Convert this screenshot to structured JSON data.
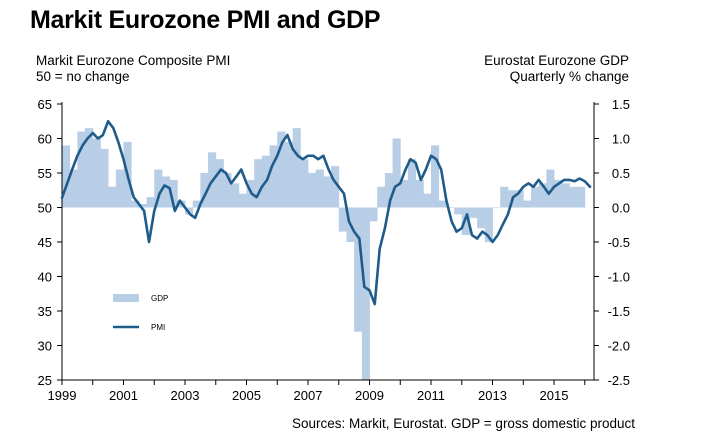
{
  "chart_data": {
    "type": "bar+line",
    "title": "Markit Eurozone PMI and GDP",
    "left_axis_label": [
      "Markit Eurozone Composite PMI",
      "50 = no change"
    ],
    "right_axis_label": [
      "Eurostat Eurozone GDP",
      "Quarterly % change"
    ],
    "source": "Sources: Markit, Eurostat. GDP = gross domestic product",
    "left_ylim": [
      25,
      65
    ],
    "left_ticks": [
      "65",
      "60",
      "55",
      "50",
      "45",
      "40",
      "35",
      "30",
      "25"
    ],
    "right_ylim": [
      -2.5,
      1.5
    ],
    "right_ticks": [
      "1.5",
      "1.0",
      "0.5",
      "0.0",
      "-0.5",
      "-1.0",
      "-1.5",
      "-2.0",
      "-2.5"
    ],
    "xlim": [
      1999,
      2016.3
    ],
    "x_ticks": [
      "1999",
      "2001",
      "2003",
      "2005",
      "2007",
      "2009",
      "2011",
      "2013",
      "2015"
    ],
    "legend": {
      "placement": "lower-left",
      "items": [
        "GDP",
        "PMI"
      ]
    },
    "colors": {
      "gdp": "#b8cde6",
      "pmi": "#1f5c8a"
    },
    "series": [
      {
        "name": "GDP",
        "axis": "right",
        "type": "bar",
        "x": [
          1999.0,
          1999.25,
          1999.5,
          1999.75,
          2000.0,
          2000.25,
          2000.5,
          2000.75,
          2001.0,
          2001.25,
          2001.5,
          2001.75,
          2002.0,
          2002.25,
          2002.5,
          2002.75,
          2003.0,
          2003.25,
          2003.5,
          2003.75,
          2004.0,
          2004.25,
          2004.5,
          2004.75,
          2005.0,
          2005.25,
          2005.5,
          2005.75,
          2006.0,
          2006.25,
          2006.5,
          2006.75,
          2007.0,
          2007.25,
          2007.5,
          2007.75,
          2008.0,
          2008.25,
          2008.5,
          2008.75,
          2009.0,
          2009.25,
          2009.5,
          2009.75,
          2010.0,
          2010.25,
          2010.5,
          2010.75,
          2011.0,
          2011.25,
          2011.5,
          2011.75,
          2012.0,
          2012.25,
          2012.5,
          2012.75,
          2013.0,
          2013.25,
          2013.5,
          2013.75,
          2014.0,
          2014.25,
          2014.5,
          2014.75,
          2015.0,
          2015.25,
          2015.5,
          2015.75
        ],
        "values": [
          0.9,
          0.55,
          1.1,
          1.15,
          1.0,
          0.85,
          0.3,
          0.55,
          0.95,
          0.1,
          0.05,
          0.15,
          0.55,
          0.45,
          0.4,
          0.1,
          -0.1,
          0.1,
          0.5,
          0.8,
          0.7,
          0.5,
          0.35,
          0.2,
          0.4,
          0.7,
          0.75,
          0.9,
          1.1,
          0.95,
          1.15,
          0.7,
          0.5,
          0.55,
          0.45,
          0.6,
          -0.35,
          -0.5,
          -1.8,
          -2.55,
          -0.2,
          0.3,
          0.5,
          1.0,
          0.4,
          0.7,
          0.4,
          0.2,
          0.9,
          0.1,
          0.0,
          -0.1,
          -0.4,
          -0.15,
          -0.3,
          -0.5,
          0.0,
          0.3,
          0.25,
          0.25,
          0.1,
          0.3,
          0.35,
          0.55,
          0.4,
          0.35,
          0.3,
          0.3
        ]
      },
      {
        "name": "PMI",
        "axis": "left",
        "type": "line",
        "x": [
          1999.0,
          1999.17,
          1999.33,
          1999.5,
          1999.67,
          1999.83,
          2000.0,
          2000.17,
          2000.33,
          2000.5,
          2000.67,
          2000.83,
          2001.0,
          2001.17,
          2001.33,
          2001.5,
          2001.67,
          2001.83,
          2002.0,
          2002.17,
          2002.33,
          2002.5,
          2002.67,
          2002.83,
          2003.0,
          2003.17,
          2003.33,
          2003.5,
          2003.67,
          2003.83,
          2004.0,
          2004.17,
          2004.33,
          2004.5,
          2004.67,
          2004.83,
          2005.0,
          2005.17,
          2005.33,
          2005.5,
          2005.67,
          2005.83,
          2006.0,
          2006.17,
          2006.33,
          2006.5,
          2006.67,
          2006.83,
          2007.0,
          2007.17,
          2007.33,
          2007.5,
          2007.67,
          2007.83,
          2008.0,
          2008.17,
          2008.33,
          2008.5,
          2008.67,
          2008.83,
          2009.0,
          2009.17,
          2009.33,
          2009.5,
          2009.67,
          2009.83,
          2010.0,
          2010.17,
          2010.33,
          2010.5,
          2010.67,
          2010.83,
          2011.0,
          2011.17,
          2011.33,
          2011.5,
          2011.67,
          2011.83,
          2012.0,
          2012.17,
          2012.33,
          2012.5,
          2012.67,
          2012.83,
          2013.0,
          2013.17,
          2013.33,
          2013.5,
          2013.67,
          2013.83,
          2014.0,
          2014.17,
          2014.33,
          2014.5,
          2014.67,
          2014.83,
          2015.0,
          2015.17,
          2015.33,
          2015.5,
          2015.67,
          2015.83,
          2016.0,
          2016.17
        ],
        "values": [
          51.4,
          53.5,
          55.5,
          57.5,
          59.0,
          60.0,
          60.8,
          60.0,
          60.5,
          62.5,
          61.5,
          59.5,
          57.0,
          54.0,
          51.5,
          50.5,
          49.5,
          45.0,
          49.5,
          52.0,
          53.2,
          52.8,
          49.5,
          51.0,
          50.0,
          49.0,
          48.5,
          50.5,
          52.0,
          53.5,
          54.5,
          55.5,
          55.0,
          53.5,
          54.5,
          55.5,
          53.5,
          52.0,
          51.5,
          53.0,
          54.0,
          56.0,
          57.5,
          59.5,
          60.5,
          58.5,
          57.5,
          57.0,
          57.5,
          57.5,
          57.0,
          57.5,
          55.5,
          54.0,
          53.0,
          52.0,
          48.0,
          46.5,
          45.5,
          38.5,
          38.0,
          36.0,
          44.0,
          47.0,
          51.0,
          53.0,
          53.5,
          55.5,
          57.0,
          56.5,
          54.0,
          55.5,
          57.5,
          57.0,
          55.5,
          51.0,
          48.0,
          46.5,
          47.0,
          49.0,
          46.0,
          45.5,
          46.5,
          46.0,
          45.0,
          46.0,
          47.5,
          49.0,
          51.5,
          52.0,
          53.0,
          53.5,
          53.0,
          54.0,
          53.0,
          52.0,
          53.0,
          53.5,
          54.0,
          54.0,
          53.8,
          54.2,
          53.8,
          53.0
        ]
      }
    ]
  }
}
